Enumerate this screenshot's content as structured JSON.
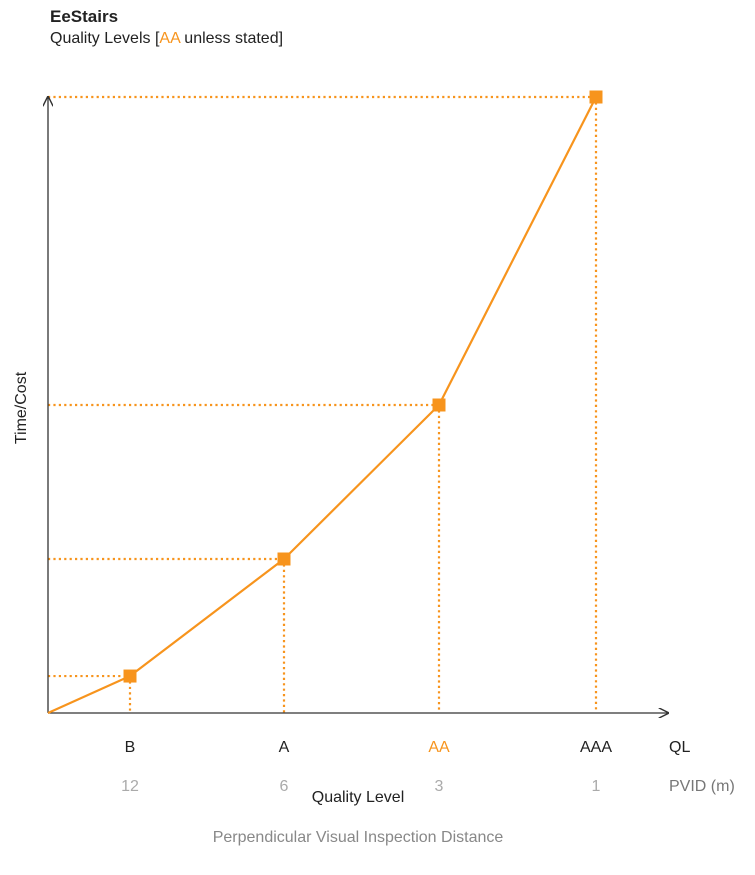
{
  "header": {
    "title": "EeStairs",
    "subtitle_prefix": "Quality Levels [",
    "subtitle_highlight": "AA",
    "subtitle_suffix": " unless stated]"
  },
  "colors": {
    "accent": "#F7941D",
    "axis": "#333333",
    "text": "#222222",
    "muted": "#AAAAAA",
    "secondary": "#777777"
  },
  "chart_data": {
    "type": "line",
    "ylabel": "Time/Cost",
    "xlabel": "Quality Level",
    "x2label": "Perpendicular Visual Inspection Distance",
    "row_labels": {
      "ql": "QL",
      "pvid": "PVID (m)"
    },
    "highlighted_category": "AA",
    "categories": [
      "B",
      "A",
      "AA",
      "AAA"
    ],
    "pvid": [
      "12",
      "6",
      "3",
      "1"
    ],
    "y_values": [
      0.06,
      0.25,
      0.5,
      1.0
    ],
    "starts_at_origin": true,
    "ylim": [
      0,
      1.0
    ],
    "grid": false,
    "guides": "dotted lines from each point to both axes",
    "marker": "square"
  }
}
